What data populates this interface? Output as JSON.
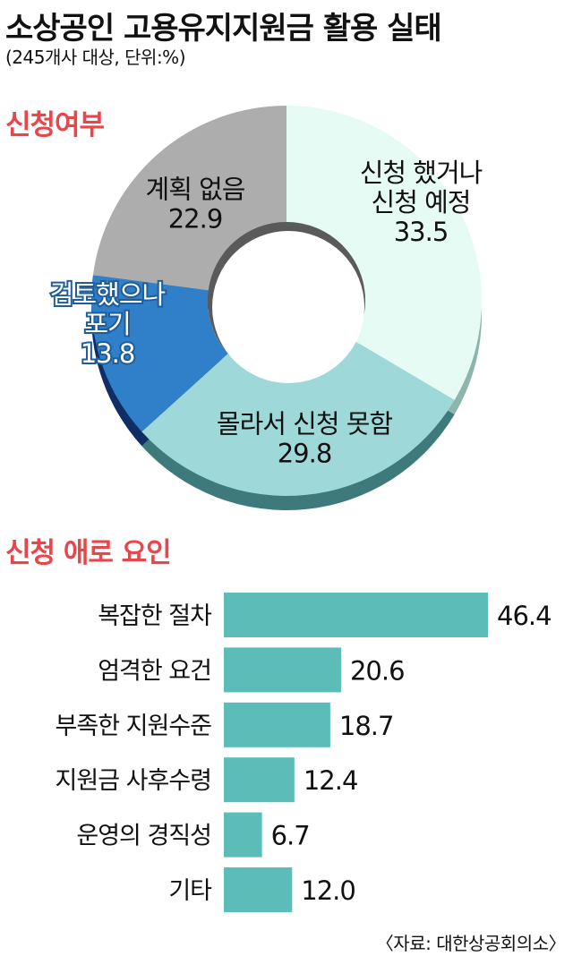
{
  "title": "소상공인 고용유지지원금 활용 실태",
  "subtitle": "(245개사 대상, 단위:%)",
  "source": "〈자료: 대한상공회의소〉",
  "colors": {
    "accent_red": "#e8464b",
    "bar": "#5bbcb8",
    "slice_applied": "#e6fbf3",
    "slice_unaware": "#9fd8d8",
    "slice_gaveup": "#2f7fc9",
    "slice_noplan": "#adadad"
  },
  "chart_data": [
    {
      "type": "pie",
      "style": "donut",
      "title": "신청여부",
      "slices": [
        {
          "label_lines": [
            "신청 했거나",
            "신청 예정"
          ],
          "value": 33.5,
          "color": "#e6fbf3",
          "side": "#8fb3ad",
          "text_style": "dark"
        },
        {
          "label_lines": [
            "몰라서 신청 못함"
          ],
          "value": 29.8,
          "color": "#9fd8d8",
          "side": "#3e7a7c",
          "text_style": "dark"
        },
        {
          "label_lines": [
            "검토했으나",
            "포기"
          ],
          "value": 13.8,
          "color": "#2f7fc9",
          "side": "#102e66",
          "text_style": "light"
        },
        {
          "label_lines": [
            "계획 없음"
          ],
          "value": 22.9,
          "color": "#adadad",
          "side": "#5e5e5e",
          "text_style": "dark"
        }
      ]
    },
    {
      "type": "bar",
      "orientation": "horizontal",
      "title": "신청 애로 요인",
      "categories": [
        "복잡한 절차",
        "엄격한 요건",
        "부족한 지원수준",
        "지원금 사후수령",
        "운영의 경직성",
        "기타"
      ],
      "values": [
        46.4,
        20.6,
        18.7,
        12.4,
        6.7,
        12.0
      ],
      "value_labels": [
        "46.4",
        "20.6",
        "18.7",
        "12.4",
        "6.7",
        "12.0"
      ],
      "xlim": [
        0,
        46.4
      ],
      "color": "#5bbcb8"
    }
  ]
}
